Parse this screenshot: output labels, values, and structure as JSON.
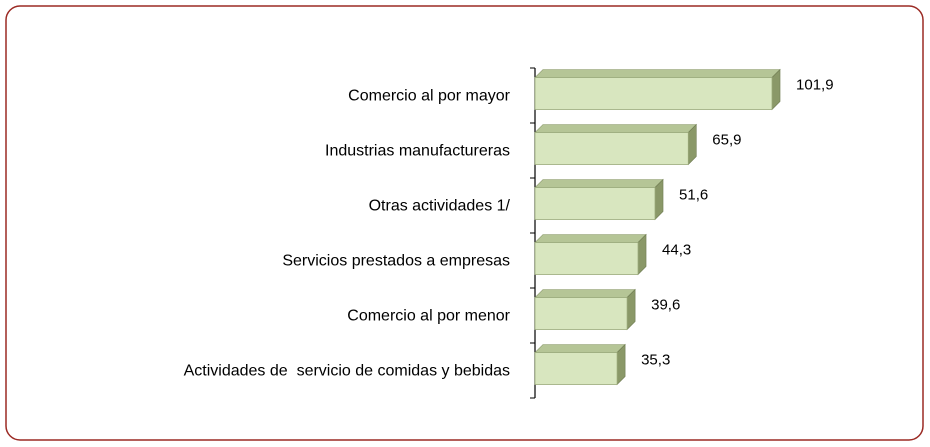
{
  "chart_data": {
    "type": "bar",
    "orientation": "horizontal",
    "categories": [
      "Comercio al por mayor",
      "Industrias manufactureras",
      "Otras actividades 1/",
      "Servicios prestados a empresas",
      "Comercio al por menor",
      "Actividades de  servicio de comidas y bebidas"
    ],
    "values": [
      101.9,
      65.9,
      51.6,
      44.3,
      39.6,
      35.3
    ],
    "value_labels": [
      "101,9",
      "65,9",
      "51,6",
      "44,3",
      "39,6",
      "35,3"
    ],
    "color": "#d8e6bf"
  }
}
